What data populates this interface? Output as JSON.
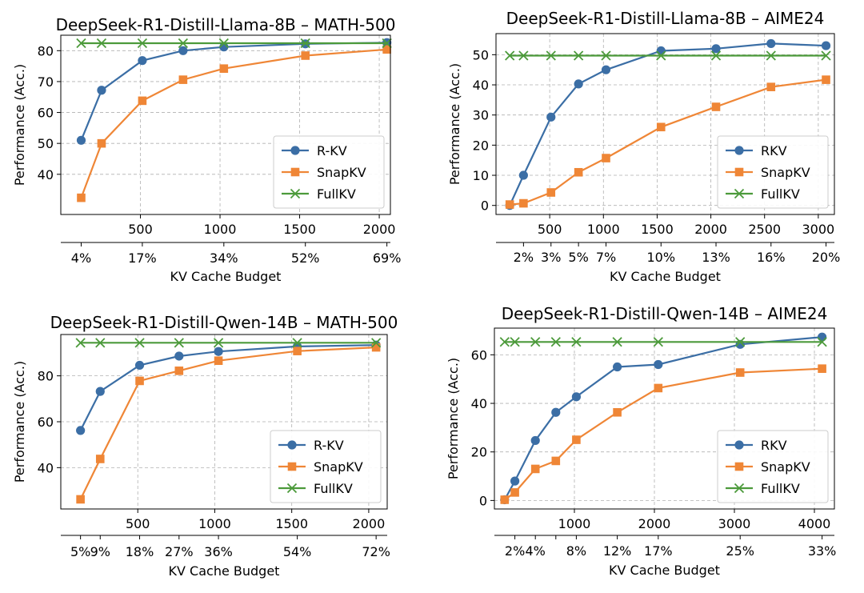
{
  "colors": {
    "rkv": "#3b6ea5",
    "snapkv": "#ef8636",
    "fullkv": "#4c9a3b",
    "grid": "#b0b0b0"
  },
  "chart_data": [
    {
      "type": "line",
      "title": "DeepSeek-R1-Distill-Llama-8B – MATH-500",
      "xlabel": "KV Cache Budget",
      "ylabel": "Performance (Acc.)",
      "xlim": [
        0,
        2070
      ],
      "ylim": [
        27,
        85
      ],
      "xticks": [
        500,
        1000,
        1500,
        2000
      ],
      "yticks": [
        40,
        50,
        60,
        70,
        80
      ],
      "secondary_xticks": [
        {
          "x": 128,
          "label": "4%"
        },
        {
          "x": 512,
          "label": "17%"
        },
        {
          "x": 1024,
          "label": "34%"
        },
        {
          "x": 1536,
          "label": "52%"
        },
        {
          "x": 2048,
          "label": "69%"
        }
      ],
      "legend": "lower-right",
      "grid": true,
      "series": [
        {
          "name": "R-KV",
          "marker": "circle",
          "x": [
            128,
            256,
            512,
            768,
            1024,
            1536,
            2048
          ],
          "y": [
            51.0,
            67.2,
            76.8,
            80.0,
            81.2,
            82.2,
            82.6
          ]
        },
        {
          "name": "SnapKV",
          "marker": "square",
          "x": [
            128,
            256,
            512,
            768,
            1024,
            1536,
            2048
          ],
          "y": [
            32.4,
            50.0,
            63.8,
            70.6,
            74.2,
            78.4,
            80.4
          ]
        },
        {
          "name": "FullKV",
          "marker": "x",
          "x": [
            128,
            256,
            512,
            768,
            1024,
            1536,
            2048
          ],
          "y": [
            82.4,
            82.4,
            82.4,
            82.4,
            82.4,
            82.4,
            82.4
          ]
        }
      ]
    },
    {
      "type": "line",
      "title": "DeepSeek-R1-Distill-Llama-8B – AIME24",
      "xlabel": "KV Cache Budget",
      "ylabel": "Performance (Acc.)",
      "xlim": [
        0,
        3150
      ],
      "ylim": [
        -3,
        57
      ],
      "xticks": [
        500,
        1000,
        1500,
        2000,
        2500,
        3000
      ],
      "yticks": [
        0,
        10,
        20,
        30,
        40,
        50
      ],
      "secondary_xticks": [
        {
          "x": 256,
          "label": "2%"
        },
        {
          "x": 512,
          "label": "3%"
        },
        {
          "x": 768,
          "label": "5%"
        },
        {
          "x": 1024,
          "label": "7%"
        },
        {
          "x": 1536,
          "label": "10%"
        },
        {
          "x": 2048,
          "label": "13%"
        },
        {
          "x": 2560,
          "label": "16%"
        },
        {
          "x": 3072,
          "label": "20%"
        }
      ],
      "legend": "lower-right",
      "grid": true,
      "series": [
        {
          "name": "RKV",
          "marker": "circle",
          "x": [
            128,
            256,
            512,
            768,
            1024,
            1536,
            2048,
            2560,
            3072
          ],
          "y": [
            0.0,
            10.0,
            29.3,
            40.3,
            45.0,
            51.3,
            52.0,
            53.7,
            53.0
          ]
        },
        {
          "name": "SnapKV",
          "marker": "square",
          "x": [
            128,
            256,
            512,
            768,
            1024,
            1536,
            2048,
            2560,
            3072
          ],
          "y": [
            0.3,
            0.7,
            4.3,
            11.0,
            15.7,
            26.0,
            32.7,
            39.3,
            41.7
          ]
        },
        {
          "name": "FullKV",
          "marker": "x",
          "x": [
            128,
            256,
            512,
            768,
            1024,
            1536,
            2048,
            2560,
            3072
          ],
          "y": [
            49.7,
            49.7,
            49.7,
            49.7,
            49.7,
            49.7,
            49.7,
            49.7,
            49.7
          ]
        }
      ]
    },
    {
      "type": "line",
      "title": "DeepSeek-R1-Distill-Qwen-14B – MATH-500",
      "xlabel": "KV Cache Budget",
      "ylabel": "Performance (Acc.)",
      "xlim": [
        0,
        2120
      ],
      "ylim": [
        22,
        98
      ],
      "xticks": [
        500,
        1000,
        1500,
        2000
      ],
      "yticks": [
        40,
        60,
        80
      ],
      "secondary_xticks": [
        {
          "x": 128,
          "label": "5%"
        },
        {
          "x": 256,
          "label": "9%"
        },
        {
          "x": 512,
          "label": "18%"
        },
        {
          "x": 768,
          "label": "27%"
        },
        {
          "x": 1024,
          "label": "36%"
        },
        {
          "x": 1536,
          "label": "54%"
        },
        {
          "x": 2048,
          "label": "72%"
        }
      ],
      "legend": "lower-right",
      "grid": true,
      "series": [
        {
          "name": "R-KV",
          "marker": "circle",
          "x": [
            128,
            256,
            512,
            768,
            1024,
            1536,
            2048
          ],
          "y": [
            56.2,
            73.2,
            84.6,
            88.6,
            90.6,
            92.8,
            93.4
          ]
        },
        {
          "name": "SnapKV",
          "marker": "square",
          "x": [
            128,
            256,
            512,
            768,
            1024,
            1536,
            2048
          ],
          "y": [
            26.2,
            43.8,
            77.8,
            82.2,
            86.6,
            90.8,
            92.4
          ]
        },
        {
          "name": "FullKV",
          "marker": "x",
          "x": [
            128,
            256,
            512,
            768,
            1024,
            1536,
            2048
          ],
          "y": [
            94.4,
            94.4,
            94.4,
            94.4,
            94.4,
            94.4,
            94.4
          ]
        }
      ]
    },
    {
      "type": "line",
      "title": "DeepSeek-R1-Distill-Qwen-14B – AIME24",
      "xlabel": "KV Cache Budget",
      "ylabel": "Performance (Acc.)",
      "xlim": [
        0,
        4250
      ],
      "ylim": [
        -3.5,
        71
      ],
      "xticks": [
        1000,
        2000,
        3000,
        4000
      ],
      "yticks": [
        0,
        20,
        40,
        60
      ],
      "secondary_xticks": [
        {
          "x": 256,
          "label": "2%"
        },
        {
          "x": 512,
          "label": "4%"
        },
        {
          "x": 1024,
          "label": "8%"
        },
        {
          "x": 1536,
          "label": "12%"
        },
        {
          "x": 2048,
          "label": "17%"
        },
        {
          "x": 3072,
          "label": "25%"
        },
        {
          "x": 4096,
          "label": "33%"
        }
      ],
      "secondary_minor_ticks": [
        768
      ],
      "legend": "lower-right",
      "grid": true,
      "series": [
        {
          "name": "RKV",
          "marker": "circle",
          "x": [
            128,
            256,
            512,
            768,
            1024,
            1536,
            2048,
            3072,
            4096
          ],
          "y": [
            0.3,
            8.0,
            24.7,
            36.3,
            42.7,
            55.0,
            56.0,
            64.3,
            67.3
          ]
        },
        {
          "name": "SnapKV",
          "marker": "square",
          "x": [
            128,
            256,
            512,
            768,
            1024,
            1536,
            2048,
            3072,
            4096
          ],
          "y": [
            0.3,
            3.3,
            13.0,
            16.3,
            25.0,
            36.3,
            46.3,
            52.7,
            54.3
          ]
        },
        {
          "name": "FullKV",
          "marker": "x",
          "x": [
            128,
            256,
            512,
            768,
            1024,
            1536,
            2048,
            3072,
            4096
          ],
          "y": [
            65.3,
            65.3,
            65.3,
            65.3,
            65.3,
            65.3,
            65.3,
            65.3,
            65.3
          ]
        }
      ]
    }
  ]
}
